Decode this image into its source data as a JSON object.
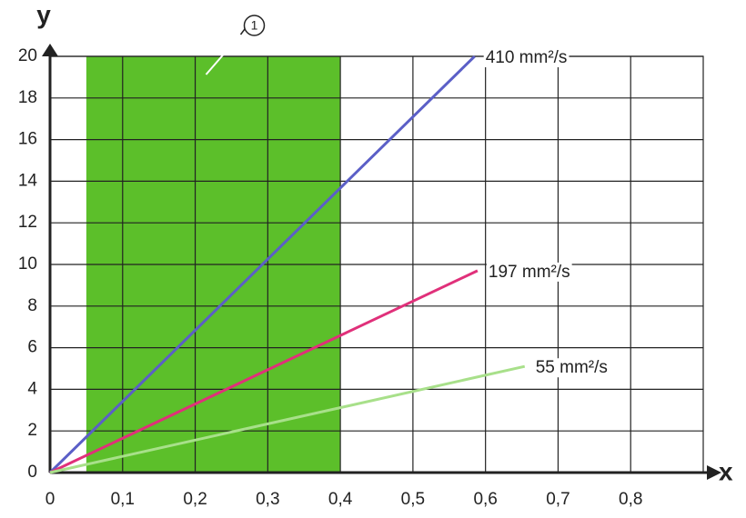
{
  "chart_data": {
    "type": "line",
    "x_label": "x",
    "y_label": "y",
    "xlim": [
      0,
      0.9
    ],
    "ylim": [
      0,
      20
    ],
    "xticks": [
      0,
      {
        "value": 0.1,
        "label": "0,1"
      },
      {
        "value": 0.2,
        "label": "0,2"
      },
      {
        "value": 0.3,
        "label": "0,3"
      },
      {
        "value": 0.4,
        "label": "0,4"
      },
      {
        "value": 0.5,
        "label": "0,5"
      },
      {
        "value": 0.6,
        "label": "0,6"
      },
      {
        "value": 0.7,
        "label": "0,7"
      },
      {
        "value": 0.8,
        "label": "0,8"
      }
    ],
    "yticks": [
      0,
      2,
      4,
      6,
      8,
      10,
      12,
      14,
      16,
      18,
      20
    ],
    "grid": true,
    "shaded_range": {
      "x": [
        0.05,
        0.4
      ],
      "color": "#5cbf2a",
      "annotation": "1"
    },
    "series": [
      {
        "name": "410 mm²/s",
        "color": "#5b5fc7",
        "x": [
          0,
          0.585
        ],
        "values": [
          0,
          20
        ]
      },
      {
        "name": "197 mm²/s",
        "color": "#e0307a",
        "x": [
          0,
          0.589
        ],
        "values": [
          0,
          9.7
        ]
      },
      {
        "name": "55 mm²/s",
        "color": "#a8e08a",
        "x": [
          0,
          0.654
        ],
        "values": [
          0,
          5.1
        ]
      }
    ]
  }
}
